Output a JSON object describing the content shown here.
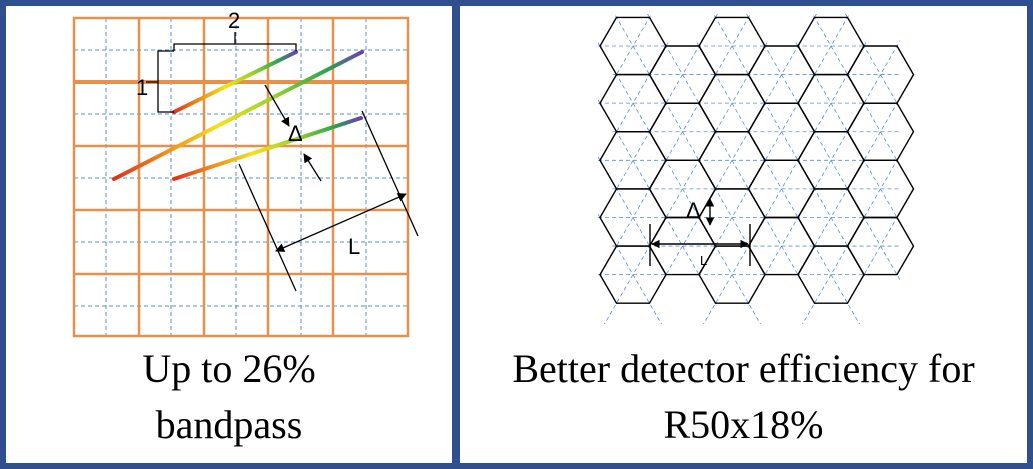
{
  "left_panel": {
    "caption_line1": "Up to 26%",
    "caption_line2": "bandpass",
    "labels": {
      "one": "1",
      "two": "2",
      "delta": "Δ",
      "length": "L"
    }
  },
  "right_panel": {
    "caption_line1": "Better detector efficiency for",
    "caption_line2": "R50x18%",
    "labels": {
      "delta": "Δ",
      "length": "L"
    }
  },
  "colors": {
    "frame": "#2f4f8f",
    "grid_major": "#e8904a",
    "grid_minor": "#5b8fd6",
    "hex_outline": "#000000",
    "spectrum": [
      "#e0301e",
      "#f08a1c",
      "#f2e21a",
      "#9ad12a",
      "#2aa84a",
      "#6a3fb0"
    ]
  }
}
